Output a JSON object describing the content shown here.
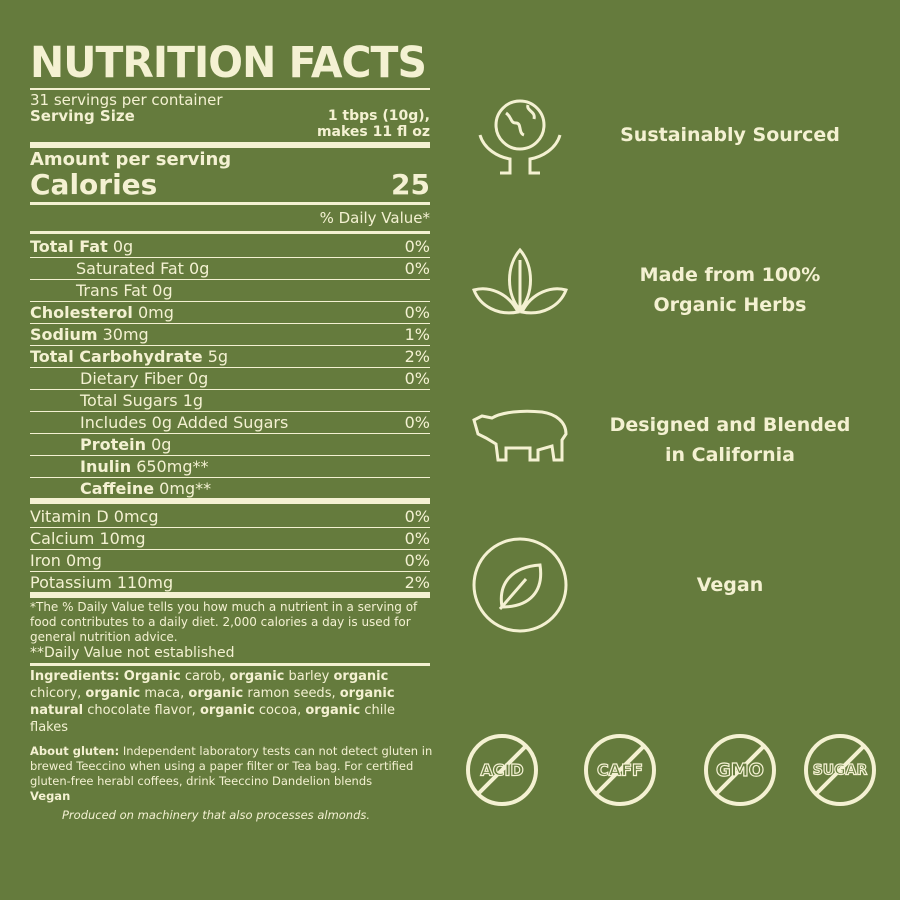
{
  "label": {
    "title": "NUTRITION FACTS",
    "servings": "31 servings per container",
    "serving_size_label": "Serving Size",
    "serving_size_value_1": "1 tbps (10g),",
    "serving_size_value_2": "makes 11 fl oz",
    "amount_per_serving": "Amount per serving",
    "calories_label": "Calories",
    "calories_value": "25",
    "daily_value_header": "% Daily Value*",
    "nutrients": [
      {
        "name": "Total Fat",
        "amount": "0g",
        "dv": "0%"
      },
      {
        "name": "Saturated Fat 0g",
        "amount": "",
        "dv": "0%"
      },
      {
        "name": "Trans Fat 0g",
        "amount": "",
        "dv": ""
      },
      {
        "name": "Cholesterol",
        "amount": "0mg",
        "dv": "0%"
      },
      {
        "name": "Sodium",
        "amount": "30mg",
        "dv": "1%"
      },
      {
        "name": "Total Carbohydrate",
        "amount": "5g",
        "dv": "2%"
      },
      {
        "name": "Dietary Fiber 0g",
        "amount": "",
        "dv": "0%"
      },
      {
        "name": "Total Sugars 1g",
        "amount": "",
        "dv": ""
      },
      {
        "name": "Includes 0g Added Sugars",
        "amount": "",
        "dv": "0%"
      },
      {
        "name": "Protein",
        "amount": "0g",
        "dv": ""
      },
      {
        "name": "Inulin",
        "amount": "650mg**",
        "dv": ""
      },
      {
        "name": "Caffeine",
        "amount": "0mg**",
        "dv": ""
      }
    ],
    "vitamins": [
      {
        "name": "Vitamin D 0mcg",
        "dv": "0%"
      },
      {
        "name": "Calcium 10mg",
        "dv": "0%"
      },
      {
        "name": "Iron 0mg",
        "dv": "0%"
      },
      {
        "name": "Potassium 110mg",
        "dv": "2%"
      }
    ],
    "footnote_1": "*The % Daily Value tells you how much a nutrient in a serving of food contributes to a daily diet. 2,000 calories a day is used for general nutrition advice.",
    "footnote_2": "**Daily Value not established",
    "ingredients_label": "Ingredients:",
    "ingredients": [
      {
        "b": "Organic",
        "t": " carob, "
      },
      {
        "b": "organic",
        "t": " barley "
      },
      {
        "b": "organic",
        "t": " chicory, "
      },
      {
        "b": "organic",
        "t": " maca, "
      },
      {
        "b": "organic",
        "t": " ramon seeds, "
      },
      {
        "b": "organic natural",
        "t": " chocolate flavor, "
      },
      {
        "b": "organic",
        "t": " cocoa, "
      },
      {
        "b": "organic",
        "t": " chile flakes"
      }
    ],
    "gluten_label": "About gluten:",
    "gluten_text": " Independent laboratory tests can not detect gluten in brewed Teeccino when using a paper filter or Tea bag. For certified gluten-free herabl coffees, drink Teeccino Dandelion blends",
    "vegan": "Vegan",
    "allergen": "Produced on machinery that also processes almonds."
  },
  "features": [
    {
      "icon": "globe-hands-icon",
      "line1": "Sustainably Sourced",
      "line2": ""
    },
    {
      "icon": "leaves-icon",
      "line1": "Made from 100%",
      "line2": "Organic Herbs"
    },
    {
      "icon": "bear-icon",
      "line1": "Designed and Blended",
      "line2": "in California"
    },
    {
      "icon": "leaf-circle-icon",
      "line1": "Vegan",
      "line2": ""
    }
  ],
  "free_of": [
    "ACID",
    "CAFF",
    "GMO",
    "SUGAR"
  ],
  "colors": {
    "background": "#657b3d",
    "text": "#f4f1d2"
  }
}
